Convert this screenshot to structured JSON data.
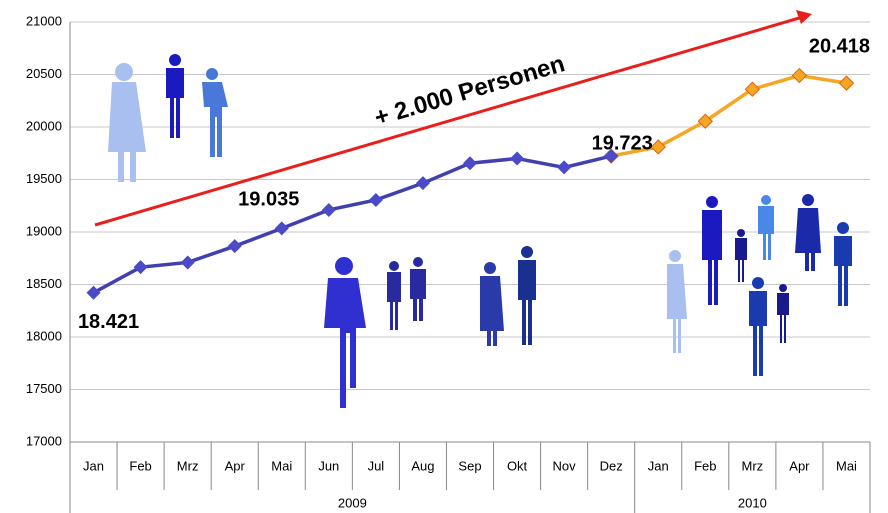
{
  "chart_data": {
    "type": "line",
    "categories": [
      "Jan",
      "Feb",
      "Mrz",
      "Apr",
      "Mai",
      "Jun",
      "Jul",
      "Aug",
      "Sep",
      "Okt",
      "Nov",
      "Dez",
      "Jan",
      "Feb",
      "Mrz",
      "Apr",
      "Mai"
    ],
    "years": [
      "2009",
      "2009",
      "2009",
      "2009",
      "2009",
      "2009",
      "2009",
      "2009",
      "2009",
      "2009",
      "2009",
      "2009",
      "2010",
      "2010",
      "2010",
      "2010",
      "2010"
    ],
    "series": [
      {
        "color": "#4040b0",
        "marker_color": "#4b4bc8",
        "values": [
          18421,
          18665,
          18710,
          18865,
          19035,
          19210,
          19305,
          19465,
          19655,
          19700,
          19615,
          19723,
          null,
          null,
          null,
          null,
          null
        ],
        "value_labels": [
          "18.421",
          null,
          null,
          null,
          "19.035",
          null,
          null,
          null,
          null,
          null,
          null,
          "19.723",
          null,
          null,
          null,
          null,
          null
        ]
      },
      {
        "color": "#f5a623",
        "marker_color": "#f5a623",
        "values": [
          null,
          null,
          null,
          null,
          null,
          null,
          null,
          null,
          null,
          null,
          null,
          19723,
          19810,
          20055,
          20360,
          20490,
          20418
        ],
        "value_labels": [
          null,
          null,
          null,
          null,
          null,
          null,
          null,
          null,
          null,
          null,
          null,
          null,
          null,
          null,
          null,
          null,
          "20.418"
        ]
      }
    ],
    "annotation": "+ 2.000 Personen",
    "ylim": [
      17000,
      21000
    ],
    "yticks": [
      17000,
      17500,
      18000,
      18500,
      19000,
      19500,
      20000,
      20500,
      21000
    ],
    "grid": true
  }
}
